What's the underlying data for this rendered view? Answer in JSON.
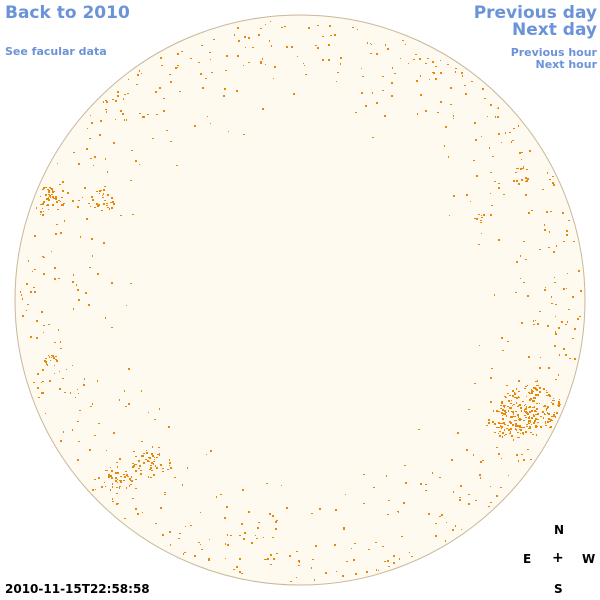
{
  "nav": {
    "back_label": "Back to 2010",
    "facular_label": "See facular data",
    "prev_day_label": "Previous day",
    "next_day_label": "Next day",
    "prev_hour_label": "Previous hour",
    "next_hour_label": "Next hour"
  },
  "compass": {
    "north": "N",
    "east": "E",
    "center": "+",
    "west": "W",
    "south": "S"
  },
  "timestamp": "2010-11-15T22:58:58",
  "colors": {
    "link": "#6a93d8",
    "disk_fill": "#fefaf0",
    "disk_border": "#c8b89a",
    "facula": "#e8880a"
  }
}
